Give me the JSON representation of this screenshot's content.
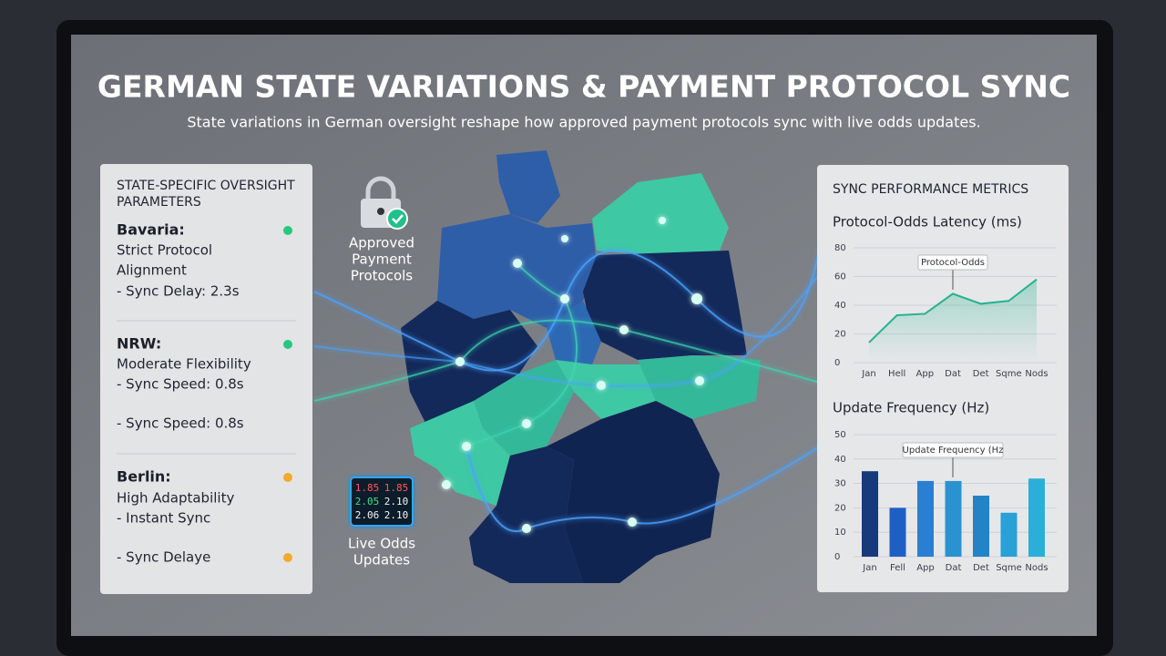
{
  "header": {
    "title": "GERMAN STATE VARIATIONS & PAYMENT PROTOCOL SYNC",
    "subtitle": "State variations in German oversight reshape how approved payment protocols sync with live odds updates."
  },
  "left_panel": {
    "title_lines": [
      "STATE-SPECIFIC OVERSIGHT",
      "PARAMETERS"
    ],
    "sections": [
      {
        "name": "Bavaria:",
        "lines": [
          "Strict Protocol",
          "Alignment",
          "- Sync Delay: 2.3s"
        ]
      },
      {
        "name": "NRW:",
        "lines": [
          "Moderate Flexibility",
          "- Sync Speed: 0.8s",
          "- Sync Speed: 0.8s"
        ]
      },
      {
        "name": "Berlin:",
        "lines": [
          "High Adaptability",
          "- Instant Sync",
          "- Sync Delaye"
        ]
      }
    ]
  },
  "map_labels": {
    "approved": [
      "Approved",
      "Payment",
      "Protocols"
    ],
    "odds": [
      "Live Odds",
      "Updates"
    ],
    "ticker": [
      [
        "1.85",
        "1.85"
      ],
      [
        "2.05",
        "2.10"
      ],
      [
        "2.06",
        "2.10"
      ]
    ]
  },
  "right_panel": {
    "title": "SYNC PERFORMANCE METRICS"
  },
  "chart_data": [
    {
      "type": "line",
      "title": "Protocol-Odds Latency (ms)",
      "annotation": "Protocol-Odds",
      "categories": [
        "Jan",
        "Hell",
        "App",
        "Dat",
        "Det",
        "Sqme",
        "Nods"
      ],
      "values": [
        14,
        33,
        34,
        48,
        41,
        43,
        58
      ],
      "color": "#25b38f",
      "ylim": [
        0,
        80
      ],
      "yticks": [
        0,
        20,
        40,
        60,
        80
      ],
      "grid": true
    },
    {
      "type": "bar",
      "title": "Update Frequency (Hz)",
      "annotation": "Update Frequency (Hz",
      "categories": [
        "Jan",
        "Fell",
        "App",
        "Dat",
        "Det",
        "Sqme",
        "Nods"
      ],
      "values": [
        35,
        20,
        31,
        31,
        25,
        18,
        32
      ],
      "colors": [
        "#173a7a",
        "#1f5fc4",
        "#2a7fd0",
        "#2b92d0",
        "#2383c4",
        "#29a0d6",
        "#2ab0d8"
      ],
      "ylim": [
        0,
        50
      ],
      "yticks": [
        0,
        10,
        20,
        30,
        40,
        50
      ],
      "grid": true
    }
  ]
}
